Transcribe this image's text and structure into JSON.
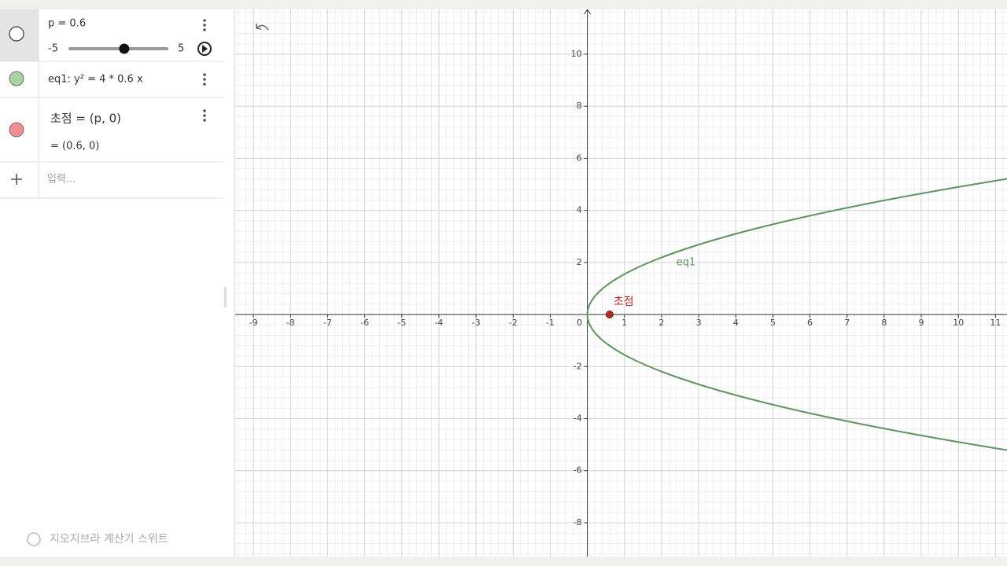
{
  "algebra": {
    "items": [
      {
        "text": "p = 0.6",
        "slider": {
          "min": -5,
          "max": 5,
          "value": 0.6
        }
      },
      {
        "text": "eq1: y² = 4 * 0.6 x"
      },
      {
        "text": "초점 = (p, 0)",
        "result": "= (0.6, 0)"
      }
    ],
    "input_placeholder": "입력...",
    "footer": "지오지브라 계산기 스위트"
  },
  "graph": {
    "xlim": [
      -9.49,
      11.31
    ],
    "ylim": [
      -9.3,
      11.72
    ],
    "xticks": [
      -9,
      -8,
      -7,
      -6,
      -5,
      -4,
      -3,
      -2,
      -1,
      0,
      1,
      2,
      3,
      4,
      5,
      6,
      7,
      8,
      9,
      10,
      11
    ],
    "yticks": [
      -8,
      -6,
      -4,
      -2,
      2,
      4,
      6,
      8,
      10
    ],
    "grid": true,
    "curve": {
      "label": "eq1",
      "color": "#5b975b"
    },
    "point": {
      "label": "초점",
      "x": 0.6,
      "y": 0,
      "color": "#cc2222"
    }
  }
}
